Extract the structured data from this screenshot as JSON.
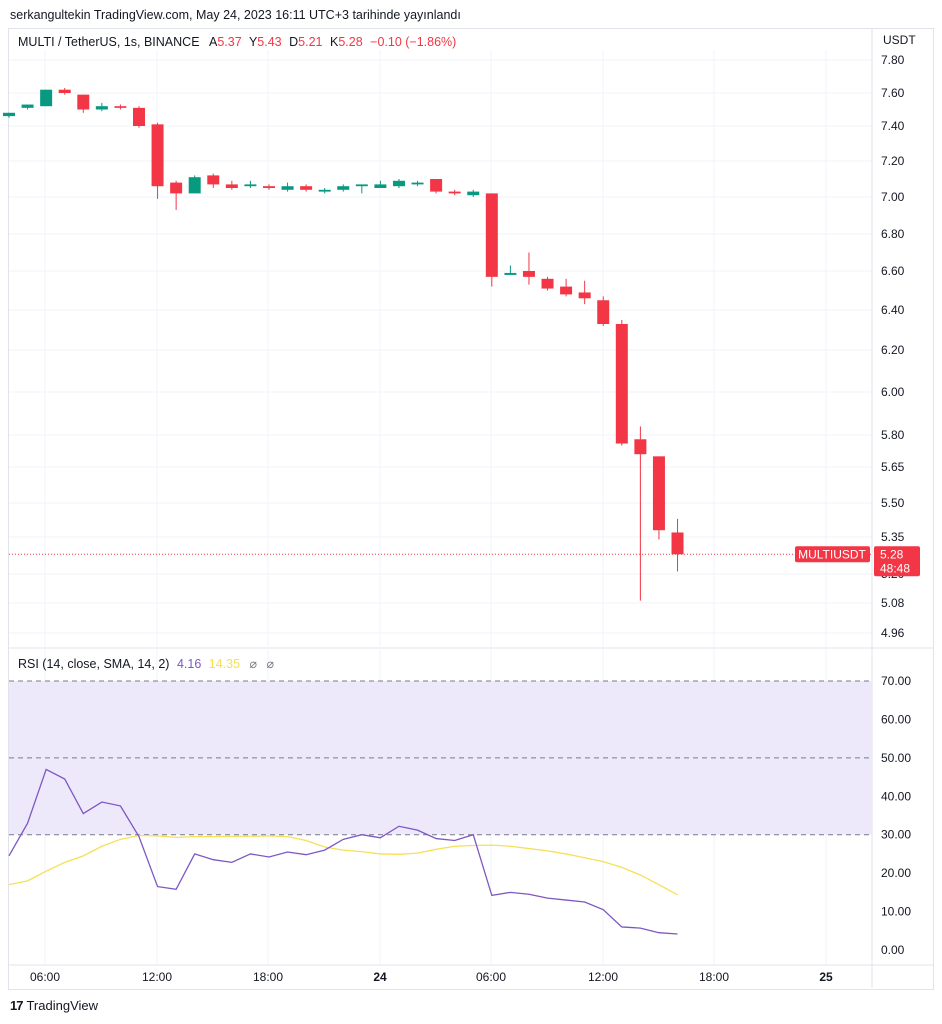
{
  "header": {
    "published": "serkangultekin TradingView.com, May 24, 2023 16:11 UTC+3 tarihinde yayınlandı"
  },
  "legend": {
    "symbol": "MULTI / TetherUS, 1s, BINANCE",
    "a_label": "A",
    "a_value": "5.37",
    "y_label": "Y",
    "y_value": "5.43",
    "d_label": "D",
    "d_value": "5.21",
    "k_label": "K",
    "k_value": "5.28",
    "change": "−0.10 (−1.86%)"
  },
  "currency": "USDT",
  "price_tag": {
    "symbol": "MULTIUSDT",
    "price": "5.28",
    "countdown": "48:48"
  },
  "rsi_legend": {
    "label": "RSI (14, close, SMA, 14, 2)",
    "rsi": "4.16",
    "sma": "14.35",
    "na1": "⌀",
    "na2": "⌀"
  },
  "footer": {
    "brand": "TradingView",
    "logo": "17"
  },
  "colors": {
    "up": "#089981",
    "down": "#f23645",
    "rsi": "#7e57c2",
    "sma": "#f5e056",
    "band": "#ede9fb"
  },
  "chart_data": [
    {
      "type": "candlestick",
      "y_ticks": [
        "7.80",
        "7.60",
        "7.40",
        "7.20",
        "7.00",
        "6.80",
        "6.60",
        "6.40",
        "6.20",
        "6.00",
        "5.80",
        "5.65",
        "5.50",
        "5.35",
        "5.20",
        "5.08",
        "4.96"
      ],
      "x_ticks": [
        "06:00",
        "12:00",
        "18:00",
        "24",
        "06:00",
        "12:00",
        "18:00",
        "25"
      ],
      "x_ticks_bold": [
        "24",
        "25"
      ],
      "candles": [
        {
          "o": 7.46,
          "h": 7.48,
          "l": 7.45,
          "c": 7.48
        },
        {
          "o": 7.51,
          "h": 7.53,
          "l": 7.5,
          "c": 7.53
        },
        {
          "o": 7.52,
          "h": 7.62,
          "l": 7.52,
          "c": 7.62
        },
        {
          "o": 7.62,
          "h": 7.63,
          "l": 7.59,
          "c": 7.6
        },
        {
          "o": 7.59,
          "h": 7.59,
          "l": 7.48,
          "c": 7.5
        },
        {
          "o": 7.5,
          "h": 7.54,
          "l": 7.49,
          "c": 7.52
        },
        {
          "o": 7.52,
          "h": 7.53,
          "l": 7.5,
          "c": 7.51
        },
        {
          "o": 7.51,
          "h": 7.52,
          "l": 7.39,
          "c": 7.4
        },
        {
          "o": 7.41,
          "h": 7.42,
          "l": 6.99,
          "c": 7.06
        },
        {
          "o": 7.08,
          "h": 7.09,
          "l": 6.93,
          "c": 7.02
        },
        {
          "o": 7.02,
          "h": 7.12,
          "l": 7.02,
          "c": 7.11
        },
        {
          "o": 7.12,
          "h": 7.13,
          "l": 7.05,
          "c": 7.07
        },
        {
          "o": 7.07,
          "h": 7.09,
          "l": 7.04,
          "c": 7.05
        },
        {
          "o": 7.06,
          "h": 7.09,
          "l": 7.05,
          "c": 7.07
        },
        {
          "o": 7.06,
          "h": 7.07,
          "l": 7.04,
          "c": 7.05
        },
        {
          "o": 7.04,
          "h": 7.08,
          "l": 7.03,
          "c": 7.06
        },
        {
          "o": 7.06,
          "h": 7.07,
          "l": 7.03,
          "c": 7.04
        },
        {
          "o": 7.03,
          "h": 7.05,
          "l": 7.02,
          "c": 7.04
        },
        {
          "o": 7.04,
          "h": 7.07,
          "l": 7.03,
          "c": 7.06
        },
        {
          "o": 7.06,
          "h": 7.07,
          "l": 7.02,
          "c": 7.07
        },
        {
          "o": 7.05,
          "h": 7.09,
          "l": 7.05,
          "c": 7.07
        },
        {
          "o": 7.06,
          "h": 7.1,
          "l": 7.05,
          "c": 7.09
        },
        {
          "o": 7.07,
          "h": 7.09,
          "l": 7.06,
          "c": 7.08
        },
        {
          "o": 7.1,
          "h": 7.1,
          "l": 7.02,
          "c": 7.03
        },
        {
          "o": 7.03,
          "h": 7.04,
          "l": 7.01,
          "c": 7.02
        },
        {
          "o": 7.01,
          "h": 7.04,
          "l": 7.0,
          "c": 7.03
        },
        {
          "o": 7.02,
          "h": 7.02,
          "l": 6.52,
          "c": 6.57
        },
        {
          "o": 6.58,
          "h": 6.63,
          "l": 6.58,
          "c": 6.59
        },
        {
          "o": 6.6,
          "h": 6.7,
          "l": 6.53,
          "c": 6.57
        },
        {
          "o": 6.56,
          "h": 6.57,
          "l": 6.5,
          "c": 6.51
        },
        {
          "o": 6.52,
          "h": 6.56,
          "l": 6.47,
          "c": 6.48
        },
        {
          "o": 6.49,
          "h": 6.55,
          "l": 6.43,
          "c": 6.46
        },
        {
          "o": 6.45,
          "h": 6.47,
          "l": 6.32,
          "c": 6.33
        },
        {
          "o": 6.33,
          "h": 6.35,
          "l": 5.75,
          "c": 5.76
        },
        {
          "o": 5.78,
          "h": 5.84,
          "l": 5.09,
          "c": 5.71
        },
        {
          "o": 5.7,
          "h": 5.7,
          "l": 5.34,
          "c": 5.38
        },
        {
          "o": 5.37,
          "h": 5.43,
          "l": 5.21,
          "c": 5.28
        }
      ]
    },
    {
      "type": "line",
      "title": "RSI (14, close, SMA, 14, 2)",
      "y_ticks": [
        "70.00",
        "60.00",
        "50.00",
        "40.00",
        "30.00",
        "20.00",
        "10.00",
        "0.00"
      ],
      "bands": [
        30,
        50,
        70
      ],
      "series": [
        {
          "name": "RSI",
          "values": [
            24.5,
            33,
            47,
            44.5,
            35.5,
            38.5,
            37.5,
            29.5,
            16.5,
            15.8,
            25,
            23.5,
            22.8,
            25,
            24.2,
            25.5,
            24.8,
            26,
            28.8,
            30,
            29.2,
            32.2,
            31.2,
            29,
            28.5,
            30,
            14.2,
            15,
            14.5,
            13.5,
            13,
            12.5,
            10.5,
            6,
            5.7,
            4.5,
            4.16
          ]
        },
        {
          "name": "SMA",
          "values": [
            17,
            18,
            20.5,
            22.8,
            24.5,
            27,
            28.8,
            29.8,
            29.7,
            29.3,
            29.5,
            29.5,
            29.6,
            29.6,
            29.7,
            29.5,
            28.5,
            26.8,
            26,
            25.6,
            25,
            24.9,
            25.2,
            26.2,
            27,
            27.2,
            27.3,
            27,
            26.4,
            25.8,
            25,
            24,
            23,
            21.5,
            19.5,
            17,
            14.35
          ]
        }
      ]
    }
  ]
}
